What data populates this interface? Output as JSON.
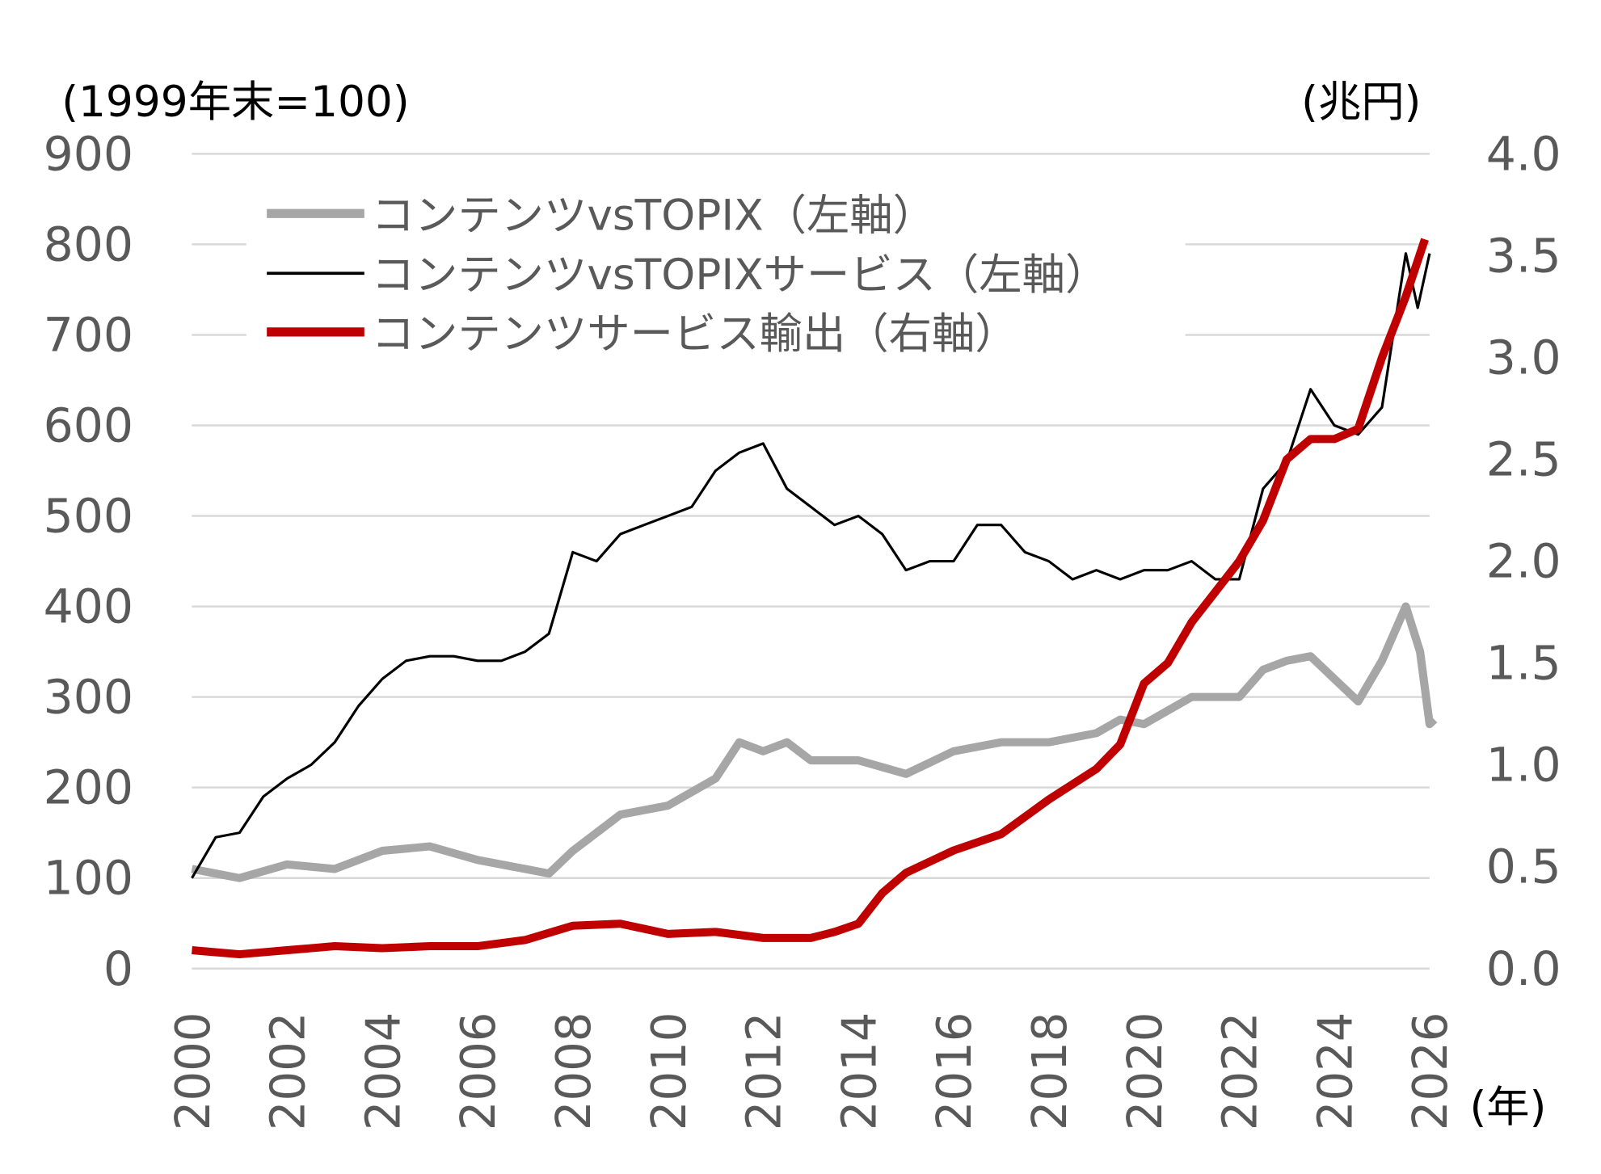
{
  "chart_data": {
    "type": "line",
    "title": "",
    "left_unit": "(1999年末=100)",
    "right_unit": "(兆円)",
    "x_unit": "(年)",
    "xlim": [
      2000,
      2026
    ],
    "ylim_left": [
      0,
      900
    ],
    "ylim_right": [
      0,
      4.0
    ],
    "x_ticks": [
      "2000",
      "2002",
      "2004",
      "2006",
      "2008",
      "2010",
      "2012",
      "2014",
      "2016",
      "2018",
      "2020",
      "2022",
      "2024",
      "2026"
    ],
    "y_left_ticks": [
      "0",
      "100",
      "200",
      "300",
      "400",
      "500",
      "600",
      "700",
      "800",
      "900"
    ],
    "y_right_ticks": [
      "0.0",
      "0.5",
      "1.0",
      "1.5",
      "2.0",
      "2.5",
      "3.0",
      "3.5",
      "4.0"
    ],
    "grid": "horizontal",
    "legend_placement": "top-left",
    "series": [
      {
        "name": "コンテンツvsTOPIX（左軸）",
        "axis": "left",
        "color": "#a6a6a6",
        "x": [
          2000,
          2001,
          2002,
          2003,
          2004,
          2005,
          2006,
          2007,
          2007.5,
          2008,
          2009,
          2010,
          2011,
          2011.5,
          2012,
          2012.5,
          2013,
          2014,
          2015,
          2016,
          2017,
          2018,
          2019,
          2019.5,
          2020,
          2021,
          2022,
          2022.5,
          2023,
          2023.5,
          2024,
          2024.5,
          2025,
          2025.5,
          2025.8,
          2026,
          2026.1
        ],
        "y": [
          110,
          100,
          115,
          110,
          130,
          135,
          120,
          110,
          105,
          130,
          170,
          180,
          210,
          250,
          240,
          250,
          230,
          230,
          215,
          240,
          250,
          250,
          260,
          275,
          270,
          300,
          300,
          330,
          340,
          345,
          320,
          295,
          340,
          400,
          350,
          270,
          275
        ]
      },
      {
        "name": "コンテンツvsTOPIXサービス（左軸）",
        "axis": "left",
        "color": "#000000",
        "x": [
          2000,
          2000.5,
          2001,
          2001.5,
          2002,
          2002.5,
          2003,
          2003.5,
          2004,
          2004.5,
          2005,
          2005.5,
          2006,
          2006.5,
          2007,
          2007.5,
          2008,
          2008.5,
          2009,
          2009.5,
          2010,
          2010.5,
          2011,
          2011.5,
          2012,
          2012.5,
          2013,
          2013.5,
          2014,
          2014.5,
          2015,
          2015.5,
          2016,
          2016.5,
          2017,
          2017.5,
          2018,
          2018.5,
          2019,
          2019.5,
          2020,
          2020.5,
          2021,
          2021.5,
          2022,
          2022.5,
          2023,
          2023.5,
          2024,
          2024.5,
          2025,
          2025.5,
          2025.75,
          2026
        ],
        "y": [
          100,
          145,
          150,
          190,
          210,
          225,
          250,
          290,
          320,
          340,
          345,
          345,
          340,
          340,
          350,
          370,
          460,
          450,
          480,
          490,
          500,
          510,
          550,
          570,
          580,
          530,
          510,
          490,
          500,
          480,
          440,
          450,
          450,
          490,
          490,
          460,
          450,
          430,
          440,
          430,
          440,
          440,
          450,
          430,
          430,
          530,
          560,
          640,
          600,
          590,
          620,
          790,
          730,
          790
        ]
      },
      {
        "name": "コンテンツサービス輸出（右軸）",
        "axis": "right",
        "color": "#c00000",
        "x": [
          2000,
          2001,
          2002,
          2003,
          2004,
          2005,
          2006,
          2007,
          2008,
          2009,
          2010,
          2011,
          2012,
          2013,
          2013.5,
          2014,
          2014.5,
          2015,
          2016,
          2017,
          2018,
          2019,
          2019.5,
          2020,
          2020.5,
          2021,
          2021.5,
          2022,
          2022.5,
          2023,
          2023.5,
          2024,
          2024.5,
          2025,
          2025.5,
          2025.9
        ],
        "y": [
          0.09,
          0.07,
          0.09,
          0.11,
          0.1,
          0.11,
          0.11,
          0.14,
          0.21,
          0.22,
          0.17,
          0.18,
          0.15,
          0.15,
          0.18,
          0.22,
          0.37,
          0.47,
          0.58,
          0.66,
          0.83,
          0.98,
          1.1,
          1.4,
          1.5,
          1.7,
          1.85,
          2.0,
          2.2,
          2.5,
          2.6,
          2.6,
          2.65,
          3.0,
          3.3,
          3.58
        ]
      }
    ]
  }
}
